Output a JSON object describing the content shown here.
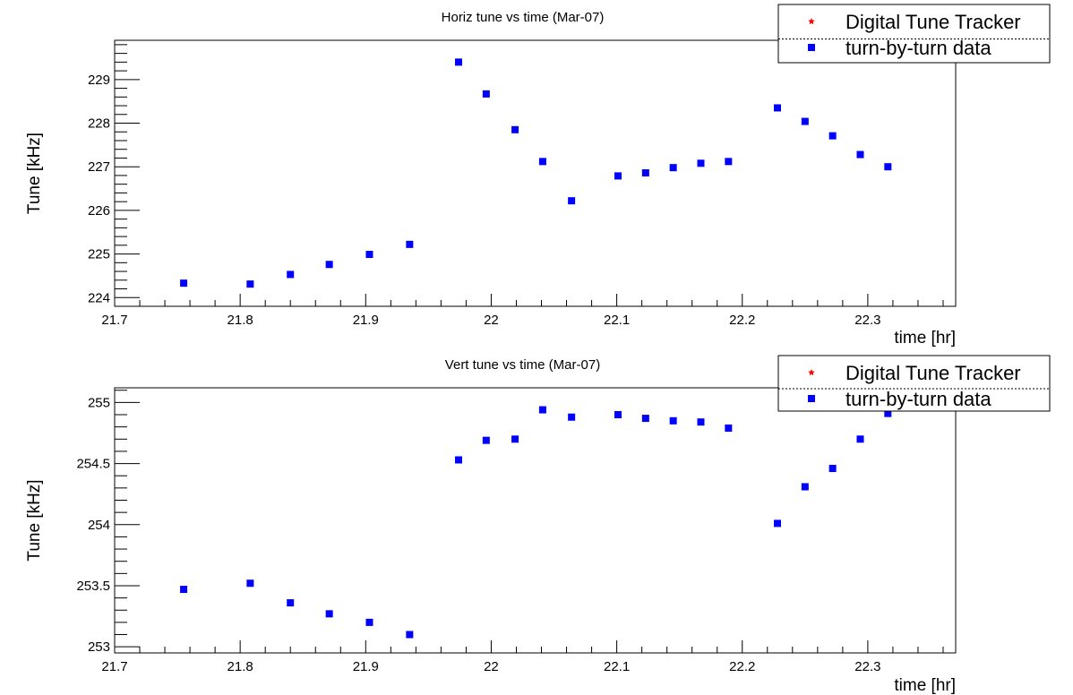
{
  "chart_data": [
    {
      "type": "scatter",
      "title": "Horiz tune vs time (Mar-07)",
      "xlabel": "time [hr]",
      "ylabel": "Tune [kHz]",
      "xlim": [
        21.7,
        22.37
      ],
      "ylim": [
        223.8,
        229.9
      ],
      "xticks": [
        "21.7",
        "21.8",
        "21.9",
        "22",
        "22.1",
        "22.2",
        "22.3"
      ],
      "yticks": [
        "224",
        "225",
        "226",
        "227",
        "228",
        "229"
      ],
      "legend": {
        "placement": "top-right",
        "entries": [
          {
            "label": "Digital Tune Tracker",
            "marker": "star",
            "color": "#ff0000"
          },
          {
            "label": "turn-by-turn data",
            "marker": "square",
            "color": "#0000ff"
          }
        ]
      },
      "series": [
        {
          "marker": "square",
          "color": "#0000ff",
          "x": [
            21.755,
            21.808,
            21.84,
            21.871,
            21.903,
            21.935,
            21.974,
            21.996,
            22.019,
            22.041,
            22.064,
            22.101,
            22.123,
            22.145,
            22.167,
            22.189,
            22.228,
            22.25,
            22.272,
            22.294,
            22.316
          ],
          "y": [
            224.33,
            224.31,
            224.53,
            224.76,
            224.99,
            225.22,
            229.4,
            228.67,
            227.85,
            227.12,
            226.22,
            226.79,
            226.86,
            226.98,
            227.08,
            227.12,
            228.35,
            228.04,
            227.71,
            227.28,
            227.0
          ]
        }
      ]
    },
    {
      "type": "scatter",
      "title": "Vert tune vs time (Mar-07)",
      "xlabel": "time [hr]",
      "ylabel": "Tune [kHz]",
      "xlim": [
        21.7,
        22.37
      ],
      "ylim": [
        252.95,
        255.12
      ],
      "xticks": [
        "21.7",
        "21.8",
        "21.9",
        "22",
        "22.1",
        "22.2",
        "22.3"
      ],
      "yticks": [
        "253",
        "253.5",
        "254",
        "254.5",
        "255"
      ],
      "legend": {
        "placement": "top-right",
        "entries": [
          {
            "label": "Digital Tune Tracker",
            "marker": "star",
            "color": "#ff0000"
          },
          {
            "label": "turn-by-turn data",
            "marker": "square",
            "color": "#0000ff"
          }
        ]
      },
      "series": [
        {
          "marker": "square",
          "color": "#0000ff",
          "x": [
            21.755,
            21.808,
            21.84,
            21.871,
            21.903,
            21.935,
            21.974,
            21.996,
            22.019,
            22.041,
            22.064,
            22.101,
            22.123,
            22.145,
            22.167,
            22.189,
            22.228,
            22.25,
            22.272,
            22.294,
            22.316
          ],
          "y": [
            253.47,
            253.52,
            253.36,
            253.27,
            253.2,
            253.1,
            254.53,
            254.69,
            254.7,
            254.94,
            254.88,
            254.9,
            254.87,
            254.85,
            254.84,
            254.79,
            254.01,
            254.31,
            254.46,
            254.7,
            254.91
          ]
        }
      ]
    }
  ]
}
